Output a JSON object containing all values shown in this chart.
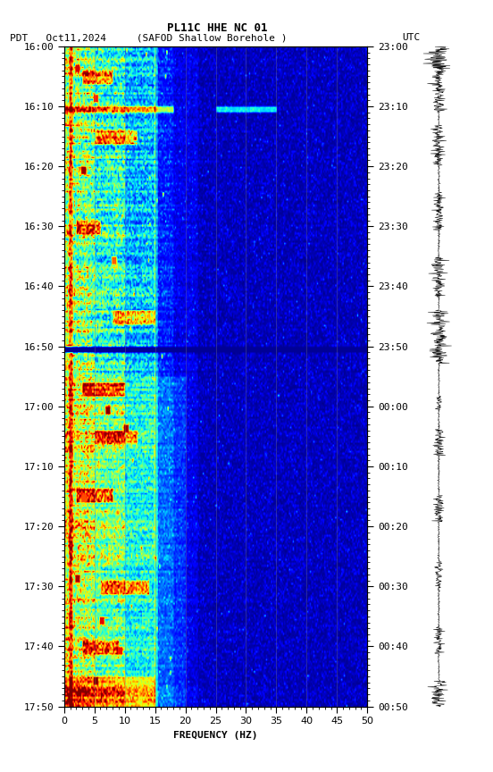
{
  "title_line1": "PL11C HHE NC 01",
  "title_line2_left": "PDT   Oct11,2024     (SAFOD Shallow Borehole )",
  "title_line2_right": "UTC",
  "xlabel": "FREQUENCY (HZ)",
  "yticks_pdt": [
    "16:00",
    "16:10",
    "16:20",
    "16:30",
    "16:40",
    "16:50",
    "17:00",
    "17:10",
    "17:20",
    "17:30",
    "17:40",
    "17:50"
  ],
  "yticks_utc": [
    "23:00",
    "23:10",
    "23:20",
    "23:30",
    "23:40",
    "23:50",
    "00:00",
    "00:10",
    "00:20",
    "00:30",
    "00:40",
    "00:50"
  ],
  "xticks": [
    0,
    5,
    10,
    15,
    20,
    25,
    30,
    35,
    40,
    45,
    50
  ],
  "grid_color": "#808080",
  "bg_color": "#000066",
  "colormap": "jet",
  "vmin": 0.0,
  "vmax": 1.0,
  "figsize": [
    5.52,
    8.64
  ],
  "dpi": 100,
  "wave_seed": 7,
  "spec_seed": 42
}
